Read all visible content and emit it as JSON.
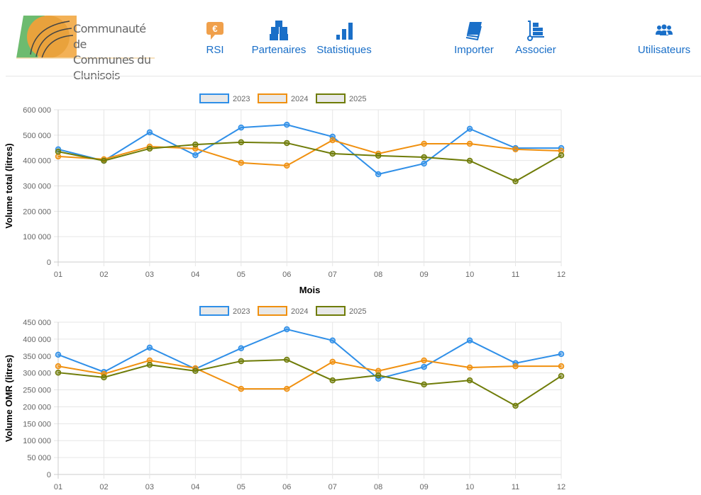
{
  "header": {
    "logo_line1": "Communauté de",
    "logo_line2": "Communes du Clunisois",
    "nav": [
      {
        "label": "RSI",
        "icon": "euro-chat-icon"
      },
      {
        "label": "Partenaires",
        "icon": "boxes-icon"
      },
      {
        "label": "Statistiques",
        "icon": "bar-chart-icon"
      },
      {
        "label": "Importer",
        "icon": "book-icon"
      },
      {
        "label": "Associer",
        "icon": "dolly-icon"
      },
      {
        "label": "Utilisateurs",
        "icon": "users-icon"
      }
    ]
  },
  "colors": {
    "2023": "#2f8fe8",
    "2024": "#f0900f",
    "2025": "#6f7c08",
    "nav": "#1a6fc8"
  },
  "chart_data": [
    {
      "type": "line",
      "xlabel": "Mois",
      "ylabel": "Volume total (litres)",
      "ylim": [
        0,
        600000
      ],
      "yticks": [
        "0",
        "100 000",
        "200 000",
        "300 000",
        "400 000",
        "500 000",
        "600 000"
      ],
      "ystep": 100000,
      "categories": [
        "01",
        "02",
        "03",
        "04",
        "05",
        "06",
        "07",
        "08",
        "09",
        "10",
        "11",
        "12"
      ],
      "legend": "top",
      "series": [
        {
          "name": "2023",
          "values": [
            444000,
            399000,
            511000,
            421000,
            530000,
            541000,
            494000,
            346000,
            388000,
            525000,
            449000,
            449000
          ]
        },
        {
          "name": "2024",
          "values": [
            416000,
            405000,
            455000,
            447000,
            391000,
            380000,
            480000,
            427000,
            466000,
            466000,
            444000,
            438000
          ]
        },
        {
          "name": "2025",
          "values": [
            435000,
            399000,
            447000,
            463000,
            472000,
            469000,
            427000,
            419000,
            413000,
            399000,
            318000,
            421000
          ]
        }
      ]
    },
    {
      "type": "line",
      "xlabel": "",
      "ylabel": "Volume OMR (litres)",
      "ylim": [
        0,
        450000
      ],
      "yticks": [
        "0",
        "50 000",
        "100 000",
        "150 000",
        "200 000",
        "250 000",
        "300 000",
        "350 000",
        "400 000",
        "450 000"
      ],
      "ystep": 50000,
      "categories": [
        "01",
        "02",
        "03",
        "04",
        "05",
        "06",
        "07",
        "08",
        "09",
        "10",
        "11",
        "12"
      ],
      "legend": "top",
      "series": [
        {
          "name": "2023",
          "values": [
            354000,
            303000,
            375000,
            312000,
            373000,
            429000,
            396000,
            283000,
            318000,
            396000,
            329000,
            356000
          ]
        },
        {
          "name": "2024",
          "values": [
            320000,
            297000,
            337000,
            314000,
            253000,
            253000,
            333000,
            306000,
            337000,
            316000,
            320000,
            320000
          ]
        },
        {
          "name": "2025",
          "values": [
            301000,
            287000,
            324000,
            306000,
            335000,
            339000,
            278000,
            293000,
            266000,
            278000,
            203000,
            291000
          ]
        }
      ]
    }
  ]
}
